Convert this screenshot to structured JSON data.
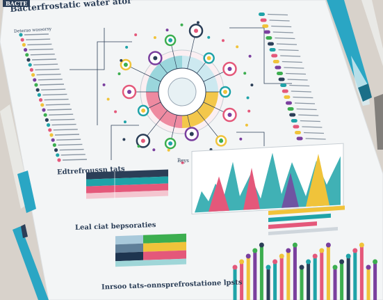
{
  "poster": {
    "tag": "BACTE",
    "title": "Bacterfrostatic water ator",
    "subtitle_small": "Deterao wossorsy",
    "section_1_title": "Edtrefroussn tats",
    "section_2_title": "Leal ciat bepsoraties",
    "section_3_title": "Inrsoo tats-onnsprefrostatione lpsts",
    "chart_label": "Beys"
  },
  "colors": {
    "navy": "#2b3e57",
    "teal": "#1fa3a8",
    "pink": "#e4587a",
    "yellow": "#f0c33a",
    "purple": "#7a3f9e",
    "green": "#3cae4f",
    "paper": "#f4f6f7",
    "pen": "#2aa6c4"
  },
  "icons": [
    "pen-icon",
    "pencil-icon"
  ]
}
